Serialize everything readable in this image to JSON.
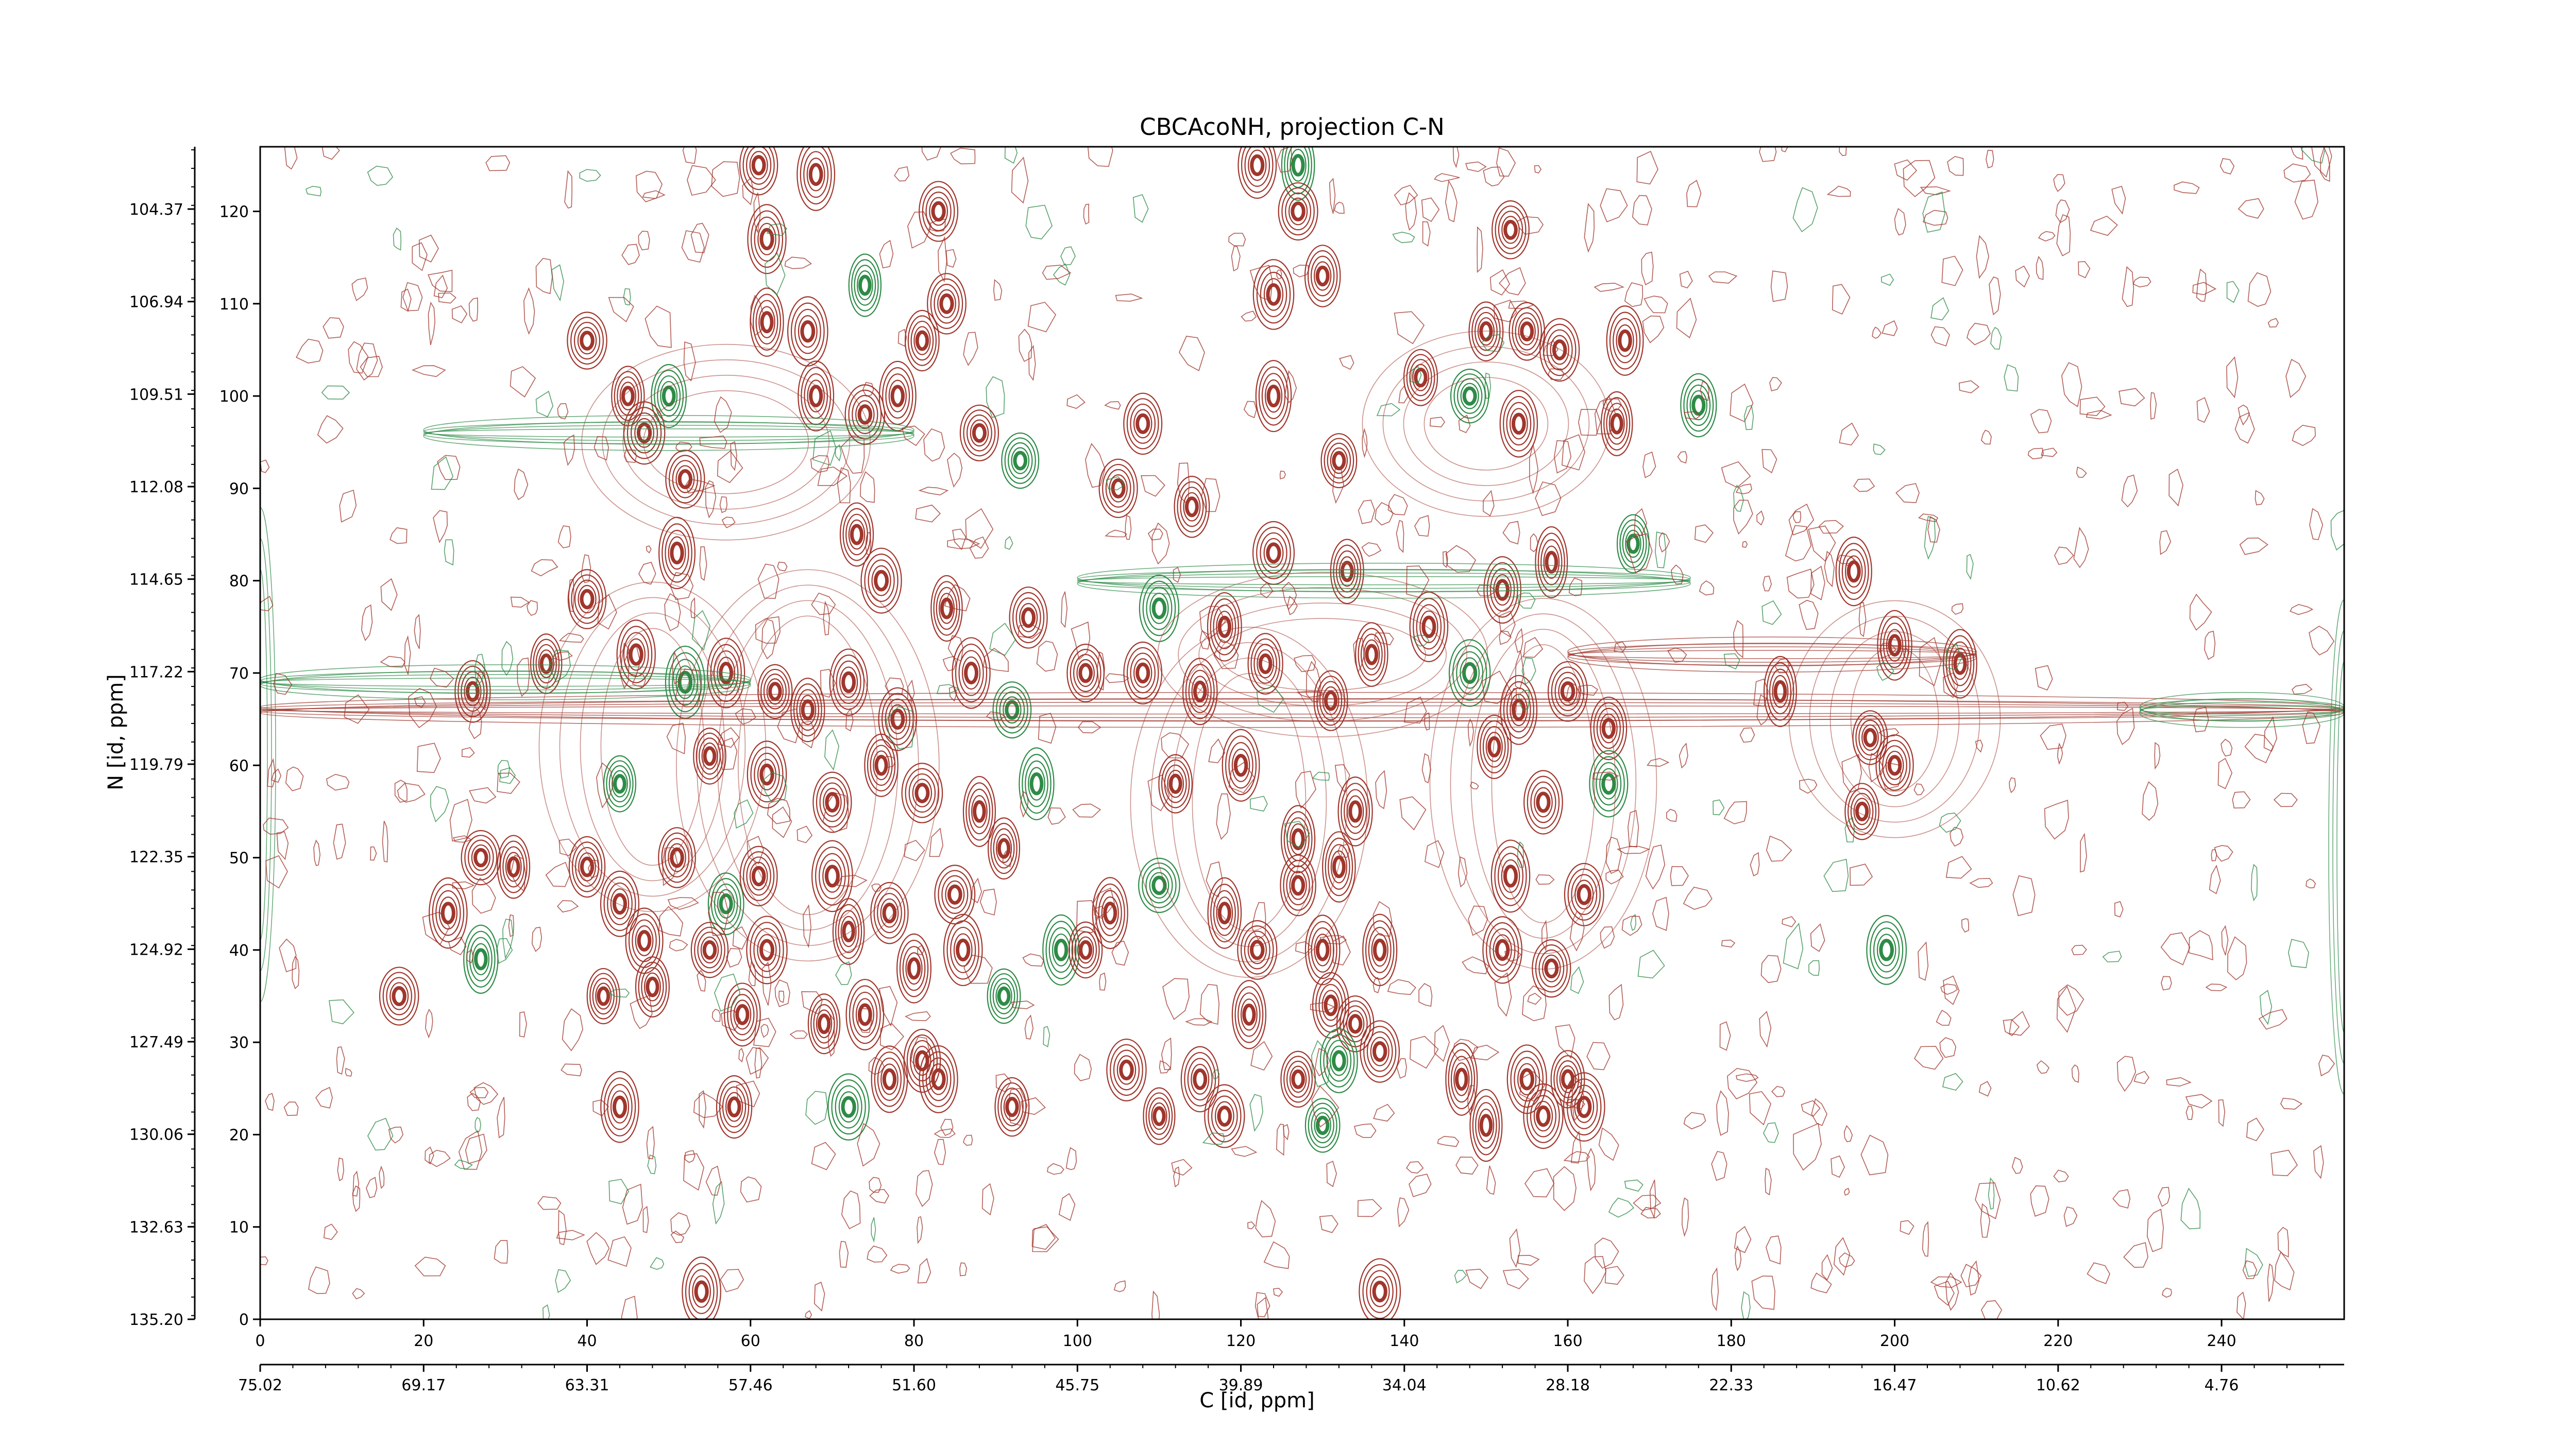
{
  "colors": {
    "positive": "#a0362c",
    "negative": "#2e8b47",
    "axis": "#000000",
    "background": "#ffffff"
  },
  "chart_data": {
    "type": "contour",
    "title": "CBCAcoNH, projection C-N",
    "xlabel": "C [id, ppm]",
    "ylabel": "N [id, ppm]",
    "grid": false,
    "legend": "none",
    "primary_x_axis": {
      "units": "points",
      "range": [
        0,
        255
      ],
      "ticks": [
        0,
        20,
        40,
        60,
        80,
        100,
        120,
        140,
        160,
        180,
        200,
        220,
        240
      ]
    },
    "secondary_x_axis": {
      "units": "ppm",
      "direction": "decreasing",
      "tick_labels": [
        "75.02",
        "69.17",
        "63.31",
        "57.46",
        "51.60",
        "45.75",
        "39.89",
        "34.04",
        "28.18",
        "22.33",
        "16.47",
        "10.62",
        "4.76"
      ]
    },
    "primary_y_axis": {
      "units": "points",
      "range": [
        0,
        127
      ],
      "ticks": [
        0,
        10,
        20,
        30,
        40,
        50,
        60,
        70,
        80,
        90,
        100,
        110,
        120
      ]
    },
    "secondary_y_axis": {
      "units": "ppm",
      "direction": "increasing-downward",
      "tick_labels": [
        "104.37",
        "106.94",
        "109.51",
        "112.08",
        "114.65",
        "117.22",
        "119.79",
        "122.35",
        "124.92",
        "127.49",
        "130.06",
        "132.63",
        "135.20"
      ]
    },
    "peaks": [
      [
        61,
        125
      ],
      [
        68,
        124
      ],
      [
        122,
        125
      ],
      [
        127,
        125
      ],
      [
        62,
        117
      ],
      [
        83,
        120
      ],
      [
        127,
        120
      ],
      [
        153,
        118
      ],
      [
        62,
        108
      ],
      [
        67,
        107
      ],
      [
        74,
        112
      ],
      [
        84,
        110
      ],
      [
        81,
        106
      ],
      [
        124,
        111
      ],
      [
        130,
        113
      ],
      [
        40,
        106
      ],
      [
        45,
        100
      ],
      [
        50,
        100
      ],
      [
        47,
        96
      ],
      [
        52,
        91
      ],
      [
        68,
        100
      ],
      [
        74,
        98
      ],
      [
        78,
        100
      ],
      [
        88,
        96
      ],
      [
        93,
        93
      ],
      [
        108,
        97
      ],
      [
        105,
        90
      ],
      [
        114,
        88
      ],
      [
        124,
        100
      ],
      [
        132,
        93
      ],
      [
        142,
        102
      ],
      [
        148,
        100
      ],
      [
        150,
        107
      ],
      [
        155,
        107
      ],
      [
        159,
        105
      ],
      [
        167,
        106
      ],
      [
        154,
        97
      ],
      [
        166,
        97
      ],
      [
        176,
        99
      ],
      [
        40,
        78
      ],
      [
        51,
        83
      ],
      [
        73,
        85
      ],
      [
        76,
        80
      ],
      [
        84,
        77
      ],
      [
        94,
        76
      ],
      [
        110,
        77
      ],
      [
        118,
        75
      ],
      [
        124,
        83
      ],
      [
        133,
        81
      ],
      [
        143,
        75
      ],
      [
        152,
        79
      ],
      [
        158,
        82
      ],
      [
        168,
        84
      ],
      [
        195,
        81
      ],
      [
        200,
        73
      ],
      [
        208,
        71
      ],
      [
        26,
        68
      ],
      [
        35,
        71
      ],
      [
        46,
        72
      ],
      [
        52,
        69
      ],
      [
        57,
        70
      ],
      [
        63,
        68
      ],
      [
        67,
        66
      ],
      [
        72,
        69
      ],
      [
        78,
        65
      ],
      [
        87,
        70
      ],
      [
        92,
        66
      ],
      [
        101,
        70
      ],
      [
        108,
        70
      ],
      [
        115,
        68
      ],
      [
        123,
        71
      ],
      [
        131,
        67
      ],
      [
        136,
        72
      ],
      [
        148,
        70
      ],
      [
        154,
        66
      ],
      [
        160,
        68
      ],
      [
        165,
        64
      ],
      [
        186,
        68
      ],
      [
        197,
        63
      ],
      [
        200,
        60
      ],
      [
        44,
        58
      ],
      [
        55,
        61
      ],
      [
        62,
        59
      ],
      [
        70,
        56
      ],
      [
        76,
        60
      ],
      [
        81,
        57
      ],
      [
        88,
        55
      ],
      [
        95,
        58
      ],
      [
        112,
        58
      ],
      [
        120,
        60
      ],
      [
        127,
        52
      ],
      [
        134,
        55
      ],
      [
        151,
        62
      ],
      [
        157,
        56
      ],
      [
        165,
        58
      ],
      [
        196,
        55
      ],
      [
        27,
        50
      ],
      [
        31,
        49
      ],
      [
        40,
        49
      ],
      [
        44,
        45
      ],
      [
        51,
        50
      ],
      [
        57,
        45
      ],
      [
        61,
        48
      ],
      [
        70,
        48
      ],
      [
        77,
        44
      ],
      [
        85,
        46
      ],
      [
        91,
        51
      ],
      [
        104,
        44
      ],
      [
        110,
        47
      ],
      [
        127,
        47
      ],
      [
        132,
        49
      ],
      [
        137,
        40
      ],
      [
        153,
        48
      ],
      [
        162,
        46
      ],
      [
        23,
        44
      ],
      [
        27,
        39
      ],
      [
        47,
        41
      ],
      [
        55,
        40
      ],
      [
        62,
        40
      ],
      [
        72,
        42
      ],
      [
        80,
        38
      ],
      [
        86,
        40
      ],
      [
        98,
        40
      ],
      [
        101,
        40
      ],
      [
        118,
        44
      ],
      [
        122,
        40
      ],
      [
        130,
        40
      ],
      [
        152,
        40
      ],
      [
        158,
        38
      ],
      [
        199,
        40
      ],
      [
        17,
        35
      ],
      [
        42,
        35
      ],
      [
        48,
        36
      ],
      [
        59,
        33
      ],
      [
        69,
        32
      ],
      [
        74,
        33
      ],
      [
        91,
        35
      ],
      [
        121,
        33
      ],
      [
        131,
        34
      ],
      [
        134,
        32
      ],
      [
        106,
        27
      ],
      [
        115,
        26
      ],
      [
        127,
        26
      ],
      [
        132,
        28
      ],
      [
        137,
        29
      ],
      [
        147,
        26
      ],
      [
        155,
        26
      ],
      [
        160,
        26
      ],
      [
        44,
        23
      ],
      [
        58,
        23
      ],
      [
        72,
        23
      ],
      [
        77,
        26
      ],
      [
        81,
        28
      ],
      [
        83,
        26
      ],
      [
        92,
        23
      ],
      [
        110,
        22
      ],
      [
        118,
        22
      ],
      [
        130,
        21
      ],
      [
        150,
        21
      ],
      [
        157,
        22
      ],
      [
        162,
        23
      ],
      [
        54,
        3
      ],
      [
        137,
        3
      ]
    ]
  }
}
